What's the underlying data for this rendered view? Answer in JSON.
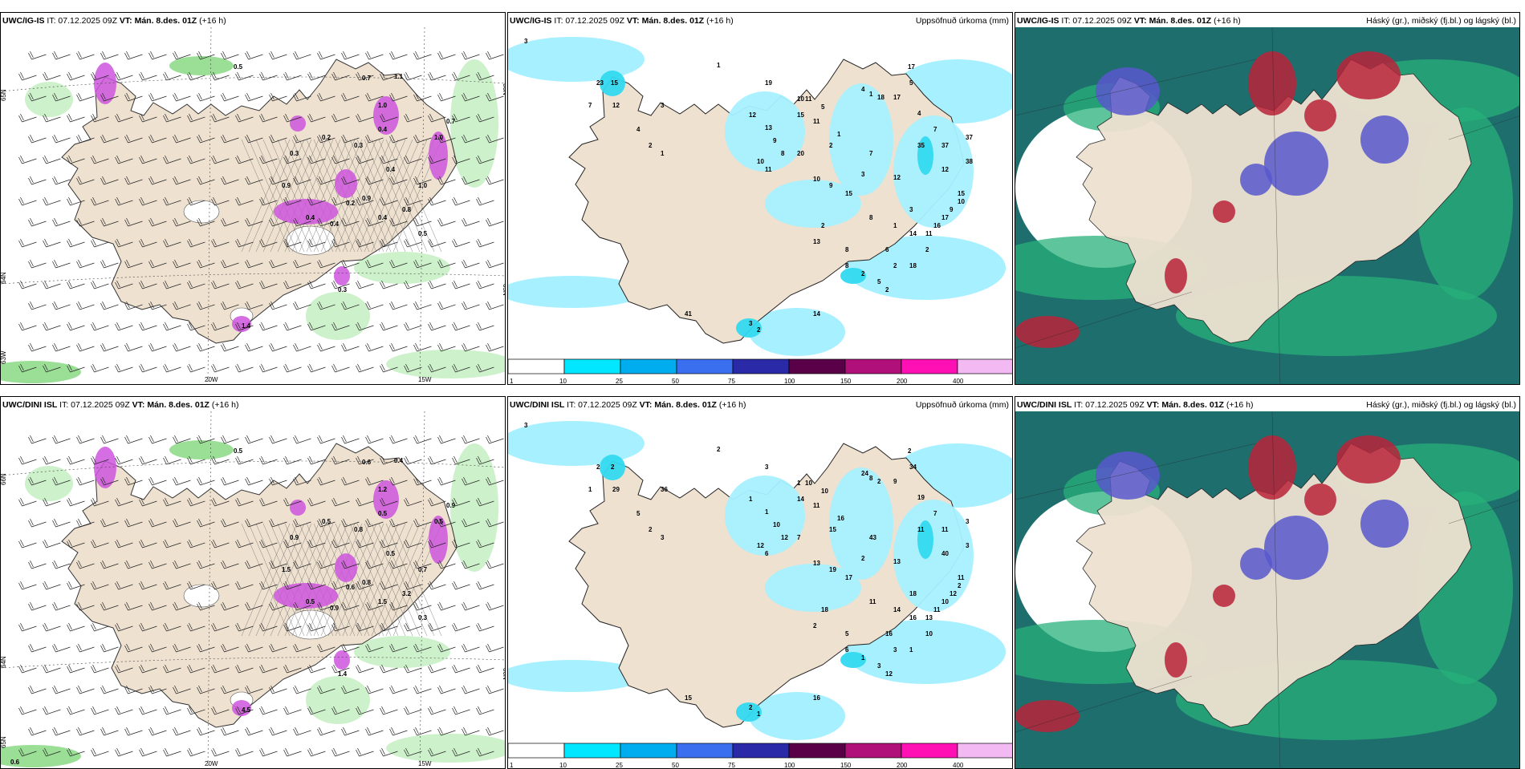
{
  "colors": {
    "land": "#eee1d0",
    "green1": "#c8f0c4",
    "green2": "#8fdc8a",
    "purple": "#cc55dd",
    "cyan1": "#a6f0ff",
    "cyan2": "#33d9f0",
    "teal": "#1f6e6e",
    "seaGreen": "#27b07a",
    "red": "#b8233a",
    "blue": "#5858cc"
  },
  "rows": [
    {
      "wind": {
        "model": "UWC/IG-IS",
        "info": "IT: 07.12.2025 09Z",
        "vt": "VT: Mán. 8.des. 01Z",
        "lead": "(+16 h)",
        "lonLabels": [
          "20W",
          "15W"
        ],
        "latLabels": [
          "65N",
          "64N",
          "63W",
          "65N",
          "66N"
        ],
        "values": [
          "0.5",
          "0.7",
          "1.1",
          "1.0",
          "0.4",
          "0.3",
          "0.2",
          "0.3",
          "0.4",
          "1.0",
          "1.0",
          "0.7",
          "0.9",
          "0.4",
          "0.4",
          "0.2",
          "0.9",
          "0.4",
          "0.8",
          "0.5",
          "1.4",
          "0.3"
        ]
      },
      "precip": {
        "model": "UWC/IG-IS",
        "info": "IT: 07.12.2025 09Z",
        "vt": "VT: Mán. 8.des. 01Z",
        "lead": "(+16 h)",
        "title": "Uppsöfnuð úrkoma (mm)",
        "values": [
          "3",
          "1",
          "23",
          "15",
          "7",
          "12",
          "3",
          "4",
          "2",
          "1",
          "19",
          "10",
          "12",
          "13",
          "9",
          "8",
          "10",
          "11",
          "15",
          "11",
          "5",
          "11",
          "20",
          "10",
          "2",
          "1",
          "4",
          "1",
          "18",
          "17",
          "17",
          "5",
          "4",
          "35",
          "7",
          "37",
          "37",
          "12",
          "38",
          "7",
          "9",
          "3",
          "12",
          "15",
          "2",
          "8",
          "1",
          "3",
          "14",
          "11",
          "16",
          "17",
          "9",
          "10",
          "15",
          "6",
          "18",
          "2",
          "2",
          "13",
          "8",
          "8",
          "2",
          "5",
          "2",
          "3",
          "2",
          "14",
          "41",
          "2"
        ],
        "scale": [
          "1",
          "10",
          "25",
          "50",
          "75",
          "100",
          "150",
          "200",
          "400"
        ]
      },
      "cloud": {
        "model": "UWC/IG-IS",
        "info": "IT: 07.12.2025 09Z",
        "vt": "VT: Mán. 8.des. 01Z",
        "lead": "(+16 h)",
        "title": "Háský (gr.), miðský (fj.bl.) og lágský (bl.)"
      }
    },
    {
      "wind": {
        "model": "UWC/DINI ISL",
        "info": "IT: 07.12.2025 09Z",
        "vt": "VT: Mán. 8.des. 01Z",
        "lead": "(+16 h)",
        "lonLabels": [
          "20W",
          "15W"
        ],
        "latLabels": [
          "66N",
          "64N",
          "65N",
          "66N"
        ],
        "values": [
          "0.5",
          "0.6",
          "0.4",
          "1.2",
          "0.5",
          "0.9",
          "0.5",
          "0.8",
          "0.5",
          "0.7",
          "0.5",
          "0.9",
          "1.5",
          "0.5",
          "0.9",
          "0.6",
          "0.8",
          "1.5",
          "3.2",
          "0.3",
          "4.5",
          "1.4",
          "0.6"
        ]
      },
      "precip": {
        "model": "UWC/DINI ISL",
        "info": "IT: 07.12.2025 09Z",
        "vt": "VT: Mán. 8.des. 01Z",
        "lead": "(+16 h)",
        "title": "Uppsöfnuð úrkoma (mm)",
        "values": [
          "3",
          "2",
          "2",
          "2",
          "1",
          "29",
          "36",
          "5",
          "2",
          "3",
          "3",
          "1",
          "1",
          "1",
          "10",
          "12",
          "12",
          "6",
          "14",
          "11",
          "10",
          "10",
          "7",
          "13",
          "15",
          "16",
          "24",
          "8",
          "2",
          "9",
          "2",
          "34",
          "19",
          "11",
          "7",
          "11",
          "3",
          "40",
          "3",
          "43",
          "19",
          "2",
          "13",
          "17",
          "18",
          "11",
          "14",
          "18",
          "16",
          "13",
          "11",
          "10",
          "12",
          "2",
          "11",
          "16",
          "1",
          "10",
          "3",
          "2",
          "5",
          "6",
          "1",
          "3",
          "12",
          "2",
          "1",
          "16",
          "15"
        ],
        "scale": [
          "1",
          "10",
          "25",
          "50",
          "75",
          "100",
          "150",
          "200",
          "400"
        ]
      },
      "cloud": {
        "model": "UWC/DINI ISL",
        "info": "IT: 07.12.2025 09Z",
        "vt": "VT: Mán. 8.des. 01Z",
        "lead": "(+16 h)",
        "title": "Háský (gr.), miðský (fj.bl.) og lágský (bl.)"
      }
    }
  ]
}
